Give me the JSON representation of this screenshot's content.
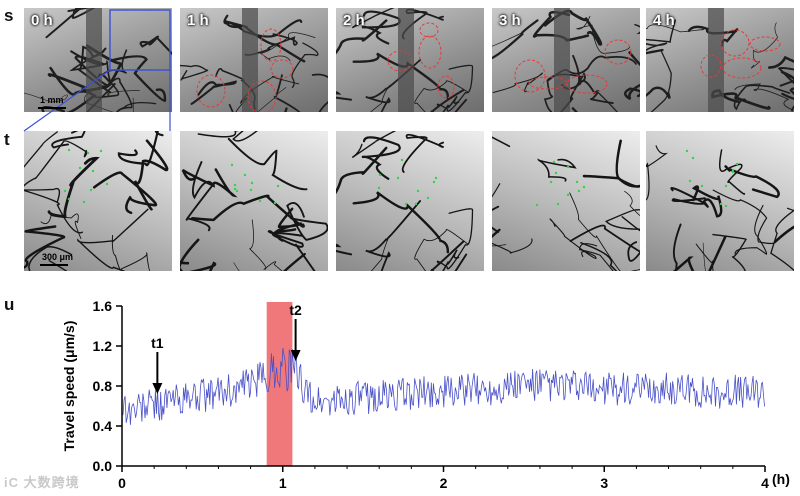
{
  "panels": {
    "s": {
      "letter": "s",
      "frames": [
        "0 h",
        "1 h",
        "2 h",
        "3 h",
        "4 h"
      ],
      "scale_label": "1 mm"
    },
    "t": {
      "letter": "t",
      "scale_label": "300 μm"
    },
    "u": {
      "letter": "u"
    }
  },
  "chart_data": {
    "type": "line",
    "xlabel": "",
    "ylabel": "Travel speed (μm/s)",
    "x_unit_label": "(h)",
    "xlim": [
      0,
      4
    ],
    "ylim": [
      0,
      1.6
    ],
    "xticks": [
      0,
      1,
      2,
      3,
      4
    ],
    "yticks": [
      0.0,
      0.4,
      0.8,
      1.2,
      1.6
    ],
    "ytick_labels": [
      "0.0",
      "0.4",
      "0.8",
      "1.2",
      "1.6"
    ],
    "grid": false,
    "highlight": {
      "x_start": 0.9,
      "x_end": 1.06,
      "color": "#f0787a"
    },
    "annotations": [
      {
        "label": "t1",
        "x": 0.22,
        "y": 0.72
      },
      {
        "label": "t2",
        "x": 1.08,
        "y": 1.05
      }
    ],
    "series_color": "#4a52c8",
    "series": [
      {
        "points": [
          [
            0.0,
            0.62
          ],
          [
            0.05,
            0.55
          ],
          [
            0.1,
            0.58
          ],
          [
            0.15,
            0.6
          ],
          [
            0.2,
            0.63
          ],
          [
            0.25,
            0.62
          ],
          [
            0.3,
            0.66
          ],
          [
            0.35,
            0.68
          ],
          [
            0.4,
            0.66
          ],
          [
            0.45,
            0.7
          ],
          [
            0.5,
            0.71
          ],
          [
            0.55,
            0.7
          ],
          [
            0.6,
            0.74
          ],
          [
            0.65,
            0.76
          ],
          [
            0.7,
            0.75
          ],
          [
            0.75,
            0.79
          ],
          [
            0.8,
            0.82
          ],
          [
            0.85,
            0.86
          ],
          [
            0.9,
            0.92
          ],
          [
            0.95,
            0.98
          ],
          [
            1.0,
            1.0
          ],
          [
            1.05,
            0.96
          ],
          [
            1.1,
            0.9
          ],
          [
            1.15,
            0.72
          ],
          [
            1.2,
            0.65
          ],
          [
            1.3,
            0.64
          ],
          [
            1.4,
            0.67
          ],
          [
            1.5,
            0.68
          ],
          [
            1.6,
            0.7
          ],
          [
            1.7,
            0.71
          ],
          [
            1.8,
            0.72
          ],
          [
            1.9,
            0.73
          ],
          [
            2.0,
            0.74
          ],
          [
            2.1,
            0.75
          ],
          [
            2.2,
            0.76
          ],
          [
            2.3,
            0.77
          ],
          [
            2.4,
            0.8
          ],
          [
            2.5,
            0.82
          ],
          [
            2.6,
            0.81
          ],
          [
            2.7,
            0.8
          ],
          [
            2.8,
            0.79
          ],
          [
            2.9,
            0.78
          ],
          [
            3.0,
            0.78
          ],
          [
            3.1,
            0.77
          ],
          [
            3.2,
            0.75
          ],
          [
            3.3,
            0.76
          ],
          [
            3.4,
            0.77
          ],
          [
            3.5,
            0.76
          ],
          [
            3.6,
            0.75
          ],
          [
            3.7,
            0.74
          ],
          [
            3.8,
            0.75
          ],
          [
            3.9,
            0.74
          ],
          [
            4.0,
            0.75
          ]
        ],
        "spread": 0.17
      }
    ]
  }
}
